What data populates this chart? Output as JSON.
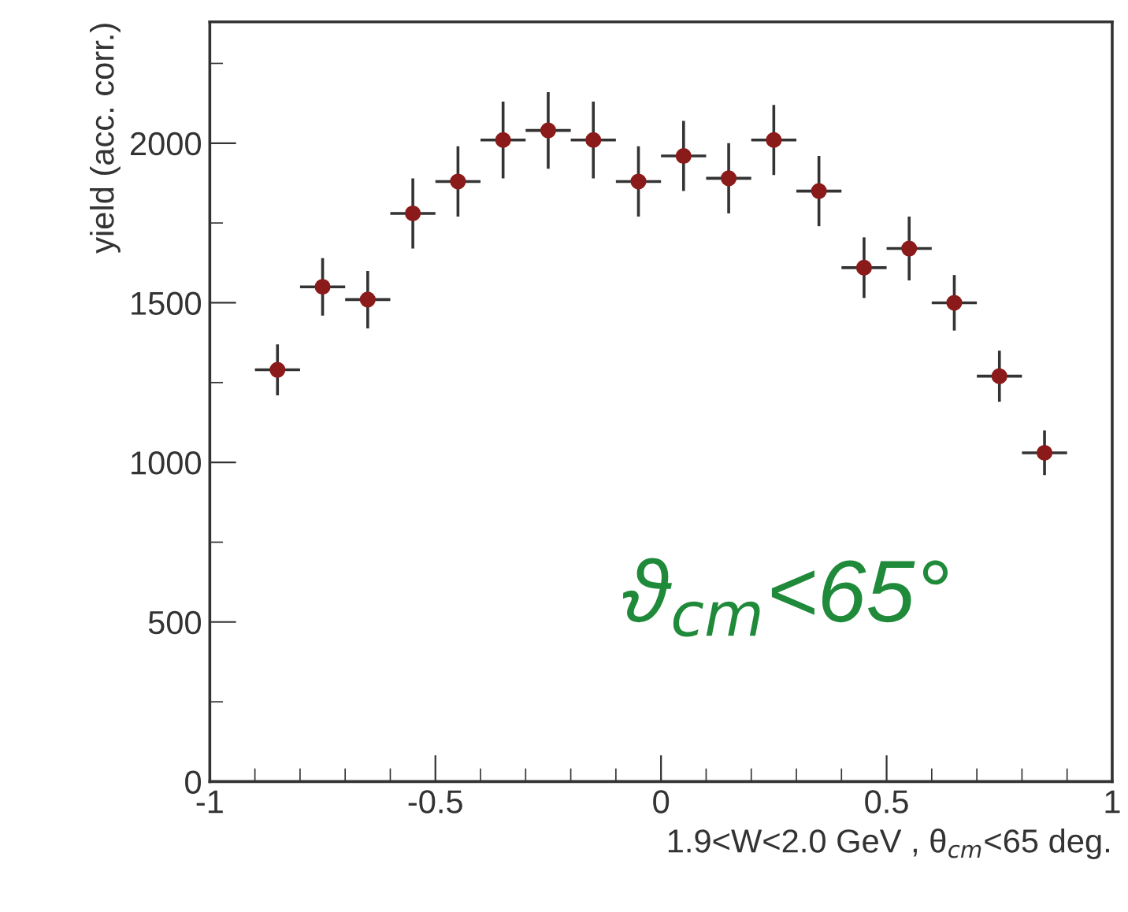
{
  "chart_data": {
    "type": "scatter",
    "x": [
      -0.85,
      -0.75,
      -0.65,
      -0.55,
      -0.45,
      -0.35,
      -0.25,
      -0.15,
      -0.05,
      0.05,
      0.15,
      0.25,
      0.35,
      0.45,
      0.55,
      0.65,
      0.75,
      0.85
    ],
    "values": [
      1290,
      1550,
      1510,
      1780,
      1880,
      2010,
      2040,
      2010,
      1880,
      1960,
      1890,
      2010,
      1850,
      1610,
      1670,
      1500,
      1270,
      1030
    ],
    "errors": [
      80,
      90,
      90,
      110,
      110,
      120,
      120,
      120,
      110,
      110,
      110,
      110,
      110,
      95,
      100,
      87,
      80,
      70
    ],
    "xerrors": [
      0.05,
      0.05,
      0.05,
      0.05,
      0.05,
      0.05,
      0.05,
      0.05,
      0.05,
      0.05,
      0.05,
      0.05,
      0.05,
      0.05,
      0.05,
      0.05,
      0.05,
      0.05
    ],
    "color": "#8b1a1a",
    "marker": "circle",
    "xlabel": "1.9<W<2.0 GeV , θ$_{cm}$<65 deg.",
    "ylabel": "yield (acc. corr.)",
    "xlim": [
      -1,
      1
    ],
    "xticks": [
      -1,
      -0.5,
      0,
      0.5,
      1
    ],
    "ylim": [
      0,
      2380
    ],
    "yticks": [
      0,
      500,
      1000,
      1500,
      2000
    ],
    "annotations": [
      "ϑ$_{cm}$<65°"
    ],
    "grid": false,
    "legend": false
  }
}
